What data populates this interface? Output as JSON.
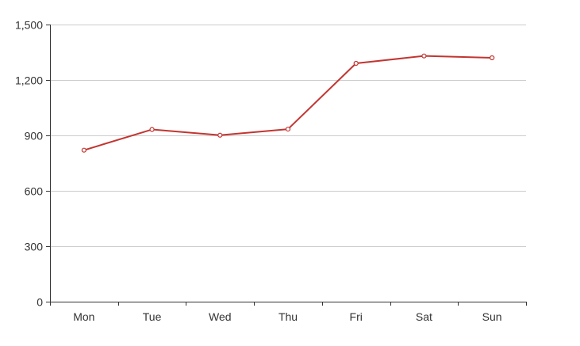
{
  "chart_data": {
    "type": "line",
    "categories": [
      "Mon",
      "Tue",
      "Wed",
      "Thu",
      "Fri",
      "Sat",
      "Sun"
    ],
    "series": [
      {
        "values": [
          820,
          932,
          901,
          934,
          1290,
          1330,
          1320
        ]
      }
    ],
    "ylim": [
      0,
      1500
    ],
    "yticks": [
      0,
      300,
      600,
      900,
      1200,
      1500
    ],
    "ytick_labels": [
      "0",
      "300",
      "600",
      "900",
      "1,200",
      "1,500"
    ],
    "grid": true,
    "legend": "none",
    "colors": {
      "line": "#c23531",
      "grid": "#cccccc",
      "axis": "#333333",
      "label": "#333333",
      "marker_fill": "#ffffff"
    }
  }
}
